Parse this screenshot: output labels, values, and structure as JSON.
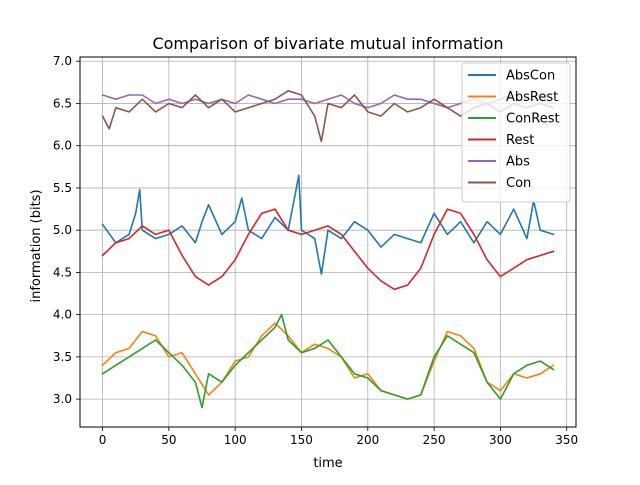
{
  "chart_data": {
    "type": "line",
    "title": "Comparison of bivariate mutual information",
    "xlabel": "time",
    "ylabel": "information (bits)",
    "xlim": [
      -17,
      357
    ],
    "ylim": [
      2.67,
      7.05
    ],
    "xticks": [
      0,
      50,
      100,
      150,
      200,
      250,
      300,
      350
    ],
    "yticks": [
      3.0,
      3.5,
      4.0,
      4.5,
      5.0,
      5.5,
      6.0,
      6.5,
      7.0
    ],
    "xtick_labels": [
      "0",
      "50",
      "100",
      "150",
      "200",
      "250",
      "300",
      "350"
    ],
    "ytick_labels": [
      "3.0",
      "3.5",
      "4.0",
      "4.5",
      "5.0",
      "5.5",
      "6.0",
      "6.5",
      "7.0"
    ],
    "grid": true,
    "legend_position": "top-right",
    "series": [
      {
        "name": "AbsCon",
        "color": "#1f77b4",
        "x": [
          0,
          10,
          20,
          25,
          28,
          30,
          40,
          50,
          60,
          70,
          75,
          80,
          90,
          100,
          105,
          110,
          120,
          130,
          140,
          145,
          148,
          150,
          160,
          165,
          170,
          180,
          190,
          200,
          210,
          220,
          230,
          240,
          250,
          260,
          270,
          280,
          290,
          300,
          310,
          320,
          325,
          330,
          340
        ],
        "y": [
          5.07,
          4.85,
          4.95,
          5.2,
          5.48,
          5.0,
          4.9,
          4.95,
          5.05,
          4.85,
          5.1,
          5.3,
          4.95,
          5.1,
          5.38,
          5.0,
          4.9,
          5.15,
          5.0,
          5.4,
          5.65,
          5.0,
          4.9,
          4.48,
          5.0,
          4.9,
          5.1,
          5.0,
          4.8,
          4.95,
          4.9,
          4.85,
          5.2,
          4.95,
          5.1,
          4.85,
          5.1,
          4.95,
          5.25,
          4.9,
          5.35,
          5.0,
          4.95
        ]
      },
      {
        "name": "AbsRest",
        "color": "#ff7f0e",
        "x": [
          0,
          10,
          20,
          30,
          40,
          50,
          60,
          70,
          80,
          90,
          100,
          110,
          120,
          130,
          140,
          150,
          160,
          170,
          180,
          190,
          200,
          210,
          220,
          230,
          240,
          250,
          260,
          270,
          280,
          290,
          300,
          310,
          320,
          330,
          340
        ],
        "y": [
          3.4,
          3.55,
          3.6,
          3.8,
          3.75,
          3.5,
          3.55,
          3.3,
          3.05,
          3.2,
          3.45,
          3.5,
          3.75,
          3.9,
          3.75,
          3.55,
          3.65,
          3.6,
          3.5,
          3.25,
          3.3,
          3.1,
          3.05,
          3.0,
          3.05,
          3.45,
          3.8,
          3.75,
          3.6,
          3.2,
          3.1,
          3.3,
          3.25,
          3.3,
          3.4
        ]
      },
      {
        "name": "ConRest",
        "color": "#2ca02c",
        "x": [
          0,
          10,
          20,
          30,
          40,
          50,
          60,
          70,
          75,
          80,
          90,
          100,
          110,
          120,
          130,
          135,
          140,
          150,
          160,
          170,
          180,
          190,
          200,
          210,
          220,
          230,
          240,
          250,
          260,
          270,
          280,
          290,
          300,
          310,
          320,
          330,
          340
        ],
        "y": [
          3.3,
          3.4,
          3.5,
          3.6,
          3.7,
          3.55,
          3.4,
          3.2,
          2.9,
          3.3,
          3.2,
          3.4,
          3.55,
          3.7,
          3.85,
          4.0,
          3.7,
          3.55,
          3.6,
          3.7,
          3.5,
          3.3,
          3.25,
          3.1,
          3.05,
          3.0,
          3.05,
          3.5,
          3.75,
          3.65,
          3.55,
          3.2,
          3.0,
          3.3,
          3.4,
          3.45,
          3.35
        ]
      },
      {
        "name": "Rest",
        "color": "#d62728",
        "x": [
          0,
          10,
          20,
          30,
          40,
          50,
          60,
          70,
          80,
          90,
          100,
          110,
          120,
          130,
          140,
          150,
          160,
          170,
          180,
          190,
          200,
          210,
          220,
          230,
          240,
          250,
          260,
          270,
          280,
          290,
          300,
          310,
          320,
          330,
          340
        ],
        "y": [
          4.7,
          4.85,
          4.9,
          5.05,
          4.95,
          5.0,
          4.7,
          4.45,
          4.35,
          4.45,
          4.65,
          4.95,
          5.2,
          5.25,
          5.0,
          4.95,
          5.0,
          5.05,
          4.95,
          4.75,
          4.55,
          4.4,
          4.3,
          4.35,
          4.55,
          4.95,
          5.25,
          5.2,
          4.95,
          4.65,
          4.45,
          4.55,
          4.65,
          4.7,
          4.75
        ]
      },
      {
        "name": "Abs",
        "color": "#9467bd",
        "x": [
          0,
          10,
          20,
          30,
          40,
          50,
          60,
          70,
          80,
          90,
          100,
          110,
          120,
          130,
          140,
          150,
          160,
          170,
          180,
          190,
          200,
          210,
          220,
          230,
          240,
          250,
          260,
          270,
          280,
          290,
          300,
          310,
          320,
          330,
          340
        ],
        "y": [
          6.6,
          6.55,
          6.6,
          6.6,
          6.5,
          6.55,
          6.5,
          6.55,
          6.5,
          6.55,
          6.5,
          6.6,
          6.55,
          6.5,
          6.55,
          6.55,
          6.5,
          6.55,
          6.6,
          6.5,
          6.45,
          6.5,
          6.6,
          6.55,
          6.55,
          6.5,
          6.45,
          6.5,
          6.55,
          6.5,
          6.55,
          6.6,
          6.55,
          6.55,
          6.5
        ]
      },
      {
        "name": "Con",
        "color": "#8c564b",
        "x": [
          0,
          5,
          10,
          20,
          30,
          40,
          50,
          60,
          70,
          80,
          90,
          100,
          110,
          120,
          130,
          140,
          150,
          160,
          165,
          170,
          180,
          190,
          200,
          210,
          220,
          230,
          240,
          250,
          260,
          270,
          280,
          290,
          300,
          310,
          320,
          330,
          340
        ],
        "y": [
          6.35,
          6.2,
          6.45,
          6.4,
          6.55,
          6.4,
          6.5,
          6.45,
          6.6,
          6.45,
          6.55,
          6.4,
          6.45,
          6.5,
          6.55,
          6.65,
          6.6,
          6.35,
          6.05,
          6.5,
          6.45,
          6.6,
          6.4,
          6.35,
          6.5,
          6.4,
          6.45,
          6.55,
          6.45,
          6.35,
          6.45,
          6.5,
          6.4,
          6.5,
          6.45,
          6.5,
          6.45
        ]
      }
    ]
  }
}
